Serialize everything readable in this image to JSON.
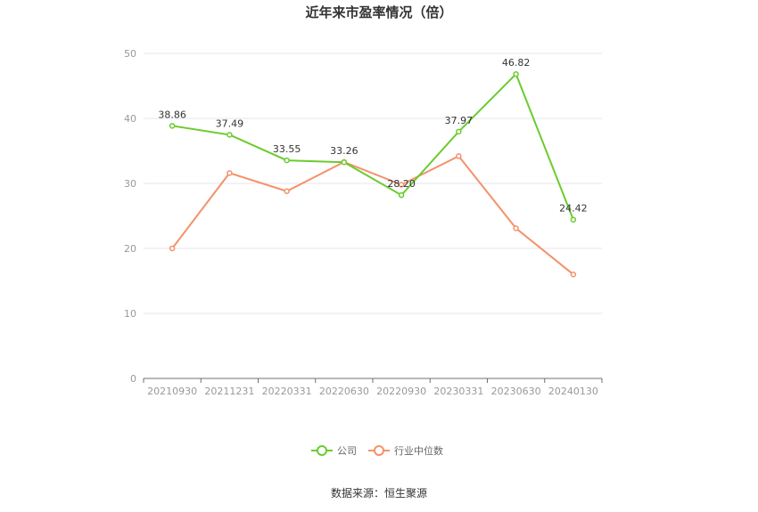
{
  "chart_data": {
    "type": "line",
    "title": "近年来市盈率情况（倍）",
    "categories": [
      "20210930",
      "20211231",
      "20220331",
      "20220630",
      "20220930",
      "20230331",
      "20230630",
      "20240130"
    ],
    "ylim": [
      0,
      50
    ],
    "yticks": [
      0,
      10,
      20,
      30,
      40,
      50
    ],
    "grid": true,
    "legend_position": "bottom-center",
    "series": [
      {
        "name": "公司",
        "color": "#6ccb2f",
        "values": [
          38.86,
          37.49,
          33.55,
          33.26,
          28.2,
          37.97,
          46.82,
          24.42
        ],
        "labels": [
          "38.86",
          "37.49",
          "33.55",
          "33.26",
          "28.20",
          "37.97",
          "46.82",
          "24.42"
        ],
        "show_labels": true
      },
      {
        "name": "行业中位数",
        "color": "#f4916a",
        "values": [
          20.0,
          31.6,
          28.8,
          33.3,
          29.8,
          34.2,
          23.1,
          16.0
        ],
        "show_labels": false
      }
    ]
  },
  "source": "数据来源：恒生聚源"
}
